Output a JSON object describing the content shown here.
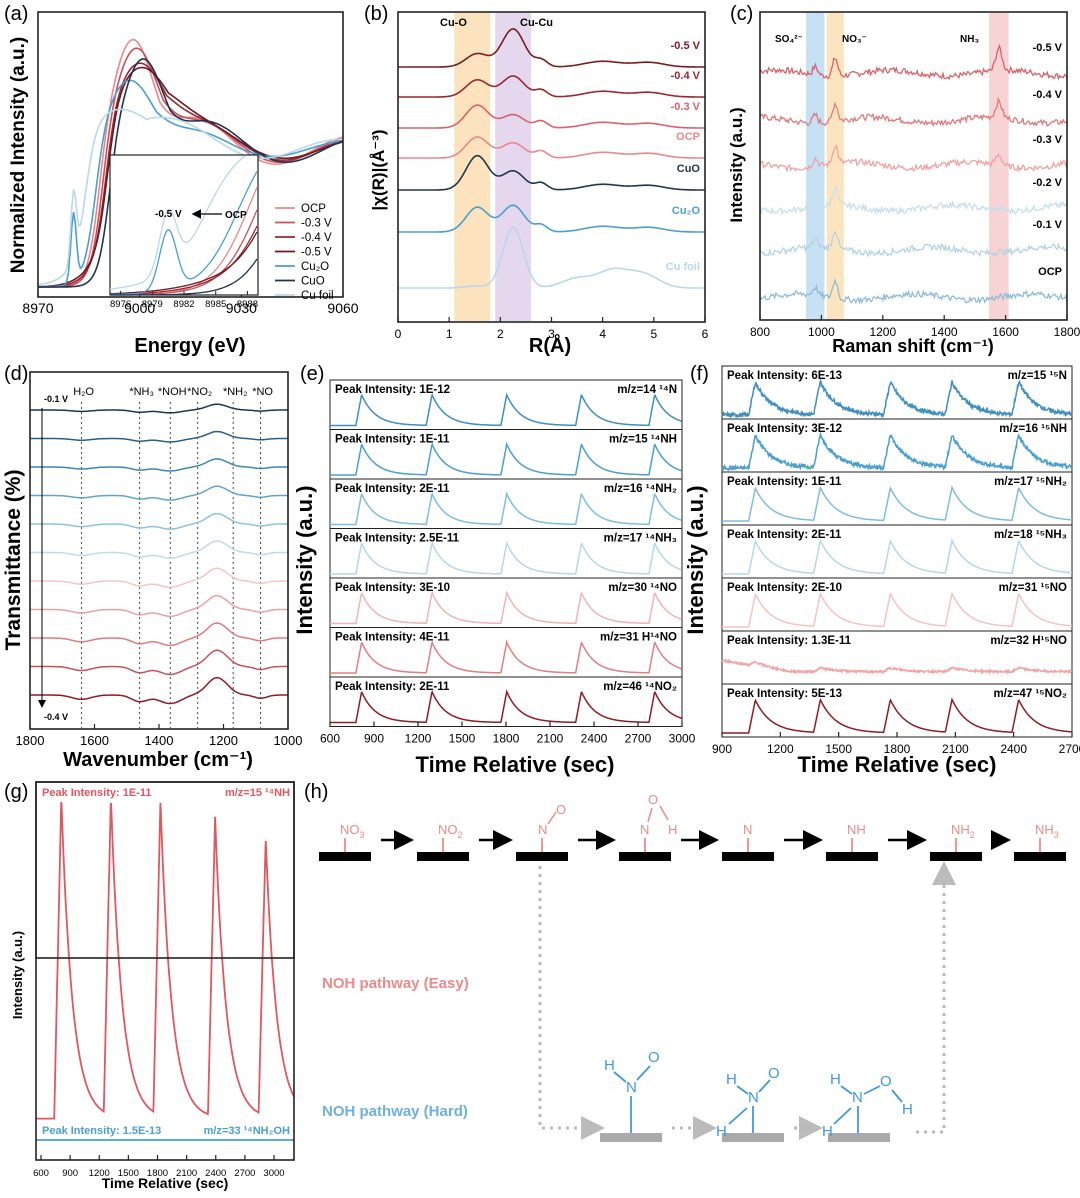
{
  "panels": {
    "a": {
      "letter": "(a)",
      "xlabel": "Energy (eV)",
      "ylabel": "Normalized Intensity (a.u.)",
      "xticks": [
        "8970",
        "9000",
        "9030",
        "9060"
      ],
      "inset_xticks": [
        "8976",
        "8979",
        "8982",
        "8985",
        "8988"
      ],
      "annot_a": "-0.5 V",
      "annot_b": "OCP"
    },
    "b": {
      "letter": "(b)",
      "xlabel": "R(Å)",
      "ylabel": "|χ(R)|(Å⁻³)",
      "xticks": [
        "0",
        "1",
        "2",
        "3",
        "4",
        "5",
        "6"
      ],
      "band1": "Cu-O",
      "band2": "Cu-Cu"
    },
    "c": {
      "letter": "(c)",
      "xlabel": "Raman shift (cm⁻¹)",
      "ylabel": "Intensity (a.u.)",
      "xticks": [
        "800",
        "1000",
        "1200",
        "1400",
        "1600",
        "1800"
      ],
      "band1": "SO₄²⁻",
      "band2": "NO₃⁻",
      "band3": "NH₃"
    },
    "d": {
      "letter": "(d)",
      "xlabel": "Wavenumber (cm⁻¹)",
      "ylabel": "Transmittance (%)",
      "xticks": [
        "1800",
        "1600",
        "1400",
        "1200",
        "1000"
      ],
      "top_label": "-0.1 V",
      "bottom_label": "-0.4 V"
    },
    "e": {
      "letter": "(e)",
      "xlabel": "Time Relative (sec)",
      "ylabel": "Intensity (a.u.)",
      "xticks": [
        "600",
        "900",
        "1200",
        "1500",
        "1800",
        "2100",
        "2400",
        "2700",
        "3000"
      ]
    },
    "f": {
      "letter": "(f)",
      "xlabel": "Time Relative (sec)",
      "ylabel": "Intensity (a.u.)",
      "xticks": [
        "900",
        "1200",
        "1500",
        "1800",
        "2100",
        "2400",
        "2700"
      ]
    },
    "g": {
      "letter": "(g)",
      "xlabel": "Time Relative (sec)",
      "ylabel": "Intensity (a.u.)",
      "xticks": [
        "600",
        "900",
        "1200",
        "1500",
        "1800",
        "2100",
        "2400",
        "2700",
        "3000"
      ],
      "top_left": "Peak Intensity: 1E-11",
      "top_right": "m/z=15 ¹⁴NH",
      "bot_left": "Peak Intensity: 1.5E-13",
      "bot_right": "m/z=33 ¹⁴NH₂OH"
    },
    "h": {
      "letter": "(h)",
      "easy_label": "NOH pathway (Easy)",
      "hard_label": "NOH pathway (Hard)"
    }
  },
  "chart_data": [
    {
      "panel": "a",
      "type": "line",
      "xlim": [
        8970,
        9060
      ],
      "legend": [
        "OCP",
        "-0.3 V",
        "-0.4 V",
        "-0.5 V",
        "Cu₂O",
        "CuO",
        "Cu foil"
      ],
      "colors": [
        "#e8888c",
        "#c9505a",
        "#9a2730",
        "#6e1a20",
        "#4a9fcf",
        "#1f3550",
        "#b8d8ec"
      ]
    },
    {
      "panel": "b",
      "type": "line",
      "xlim": [
        0,
        6
      ],
      "series": [
        "-0.5 V",
        "-0.4 V",
        "-0.3 V",
        "OCP",
        "CuO",
        "Cu₂O",
        "Cu foil"
      ],
      "colors": [
        "#7a1a22",
        "#9a2730",
        "#d9626a",
        "#e8888c",
        "#1f3550",
        "#4a9fcf",
        "#b8d8ec"
      ],
      "bands": [
        {
          "label": "Cu-O",
          "from": 1.1,
          "to": 1.8
        },
        {
          "label": "Cu-Cu",
          "from": 1.9,
          "to": 2.6
        }
      ]
    },
    {
      "panel": "c",
      "type": "line",
      "xlim": [
        800,
        1800
      ],
      "series": [
        "-0.5 V",
        "-0.4 V",
        "-0.3 V",
        "-0.2 V",
        "-0.1 V",
        "OCP"
      ],
      "colors": [
        "#d9626a",
        "#e07a80",
        "#eea3a6",
        "#c8dfec",
        "#b5d3e6",
        "#8fbcd8"
      ],
      "bands": [
        {
          "label": "SO₄²⁻",
          "center": 980
        },
        {
          "label": "NO₃⁻",
          "center": 1045
        },
        {
          "label": "NH₃",
          "center": 1578
        }
      ]
    },
    {
      "panel": "d",
      "type": "line",
      "xlim": [
        1800,
        1000
      ],
      "markers": [
        {
          "label": "H₂O",
          "x": 1640
        },
        {
          "label": "*NH₃",
          "x": 1460
        },
        {
          "label": "*NOH",
          "x": 1365
        },
        {
          "label": "*NO₂",
          "x": 1280
        },
        {
          "label": "*NH₂",
          "x": 1170
        },
        {
          "label": "*NO",
          "x": 1085
        }
      ]
    },
    {
      "panel": "e",
      "type": "line",
      "xlim": [
        600,
        3050
      ],
      "peaks": [
        820,
        1310,
        1830,
        2350,
        2860
      ],
      "rows": [
        {
          "intensity": "Peak Intensity: 1E-12",
          "mz": "m/z=14 ¹⁴N",
          "color": "#3f8fbf"
        },
        {
          "intensity": "Peak Intensity: 1E-11",
          "mz": "m/z=15 ¹⁴NH",
          "color": "#4a9fcf"
        },
        {
          "intensity": "Peak Intensity: 2E-11",
          "mz": "m/z=16 ¹⁴NH₂",
          "color": "#7fbde0"
        },
        {
          "intensity": "Peak Intensity: 2.5E-11",
          "mz": "m/z=17 ¹⁴NH₃",
          "color": "#b5d7ec"
        },
        {
          "intensity": "Peak Intensity: 3E-10",
          "mz": "m/z=30 ¹⁴NO",
          "color": "#f1b3b5"
        },
        {
          "intensity": "Peak Intensity: 4E-11",
          "mz": "m/z=31  H¹⁴NO",
          "color": "#e07f84"
        },
        {
          "intensity": "Peak Intensity: 2E-11",
          "mz": "m/z=46  ¹⁴NO₂",
          "color": "#8e1c24"
        }
      ]
    },
    {
      "panel": "f",
      "type": "line",
      "xlim": [
        750,
        2850
      ],
      "peaks": [
        950,
        1340,
        1760,
        2130,
        2530
      ],
      "rows": [
        {
          "intensity": "Peak Intensity: 6E-13",
          "mz": "m/z=15 ¹⁵N",
          "color": "#3f8fbf"
        },
        {
          "intensity": "Peak Intensity: 3E-12",
          "mz": "m/z=16 ¹⁵NH",
          "color": "#4a9fcf"
        },
        {
          "intensity": "Peak Intensity: 1E-11",
          "mz": "m/z=17 ¹⁵NH₂",
          "color": "#7fbde0"
        },
        {
          "intensity": "Peak Intensity: 2E-11",
          "mz": "m/z=18 ¹⁵NH₃",
          "color": "#b5d7ec"
        },
        {
          "intensity": "Peak Intensity: 2E-10",
          "mz": "m/z=31 ¹⁵NO",
          "color": "#f4c3c4"
        },
        {
          "intensity": "Peak Intensity: 1.3E-11",
          "mz": "m/z=32  H¹⁵NO",
          "color": "#f0a5a8"
        },
        {
          "intensity": "Peak Intensity: 5E-13",
          "mz": "m/z=47  ¹⁵NO₂",
          "color": "#8e1c24"
        }
      ]
    },
    {
      "panel": "g",
      "type": "line",
      "xlim": [
        600,
        3150
      ],
      "peaks": [
        850,
        1340,
        1830,
        2370,
        2870
      ],
      "series": [
        {
          "name": "m/z=15 ¹⁴NH",
          "color": "#e0575f"
        },
        {
          "name": "m/z=33 ¹⁴NH₂OH",
          "color": "#4a9fcf"
        }
      ]
    }
  ]
}
